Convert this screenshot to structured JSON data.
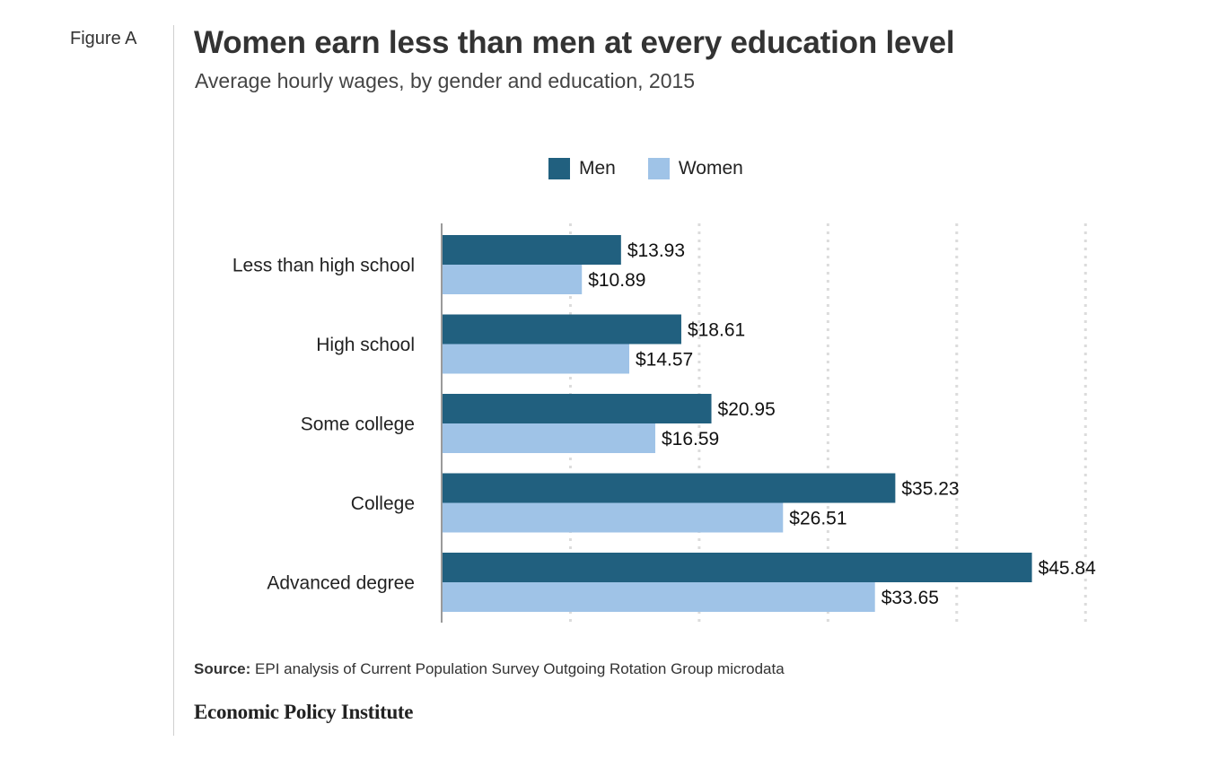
{
  "figure_label": "Figure A",
  "title": "Women earn less than men at every education level",
  "subtitle": "Average hourly wages, by gender and education, 2015",
  "source_label": "Source:",
  "source_text": "EPI analysis of Current Population Survey Outgoing Rotation Group microdata",
  "brand": "Economic Policy Institute",
  "colors": {
    "men": "#21607f",
    "women": "#9fc3e7"
  },
  "chart_data": {
    "type": "bar",
    "orientation": "horizontal",
    "categories": [
      "Less than high school",
      "High school",
      "Some college",
      "College",
      "Advanced degree"
    ],
    "series": [
      {
        "name": "Men",
        "values": [
          13.93,
          18.61,
          20.95,
          35.23,
          45.84
        ],
        "labels": [
          "$13.93",
          "$18.61",
          "$20.95",
          "$35.23",
          "$45.84"
        ]
      },
      {
        "name": "Women",
        "values": [
          10.89,
          14.57,
          16.59,
          26.51,
          33.65
        ],
        "labels": [
          "$10.89",
          "$14.57",
          "$16.59",
          "$26.51",
          "$33.65"
        ]
      }
    ],
    "xlim": [
      0,
      50
    ],
    "grid": true,
    "legend": "top-center"
  }
}
